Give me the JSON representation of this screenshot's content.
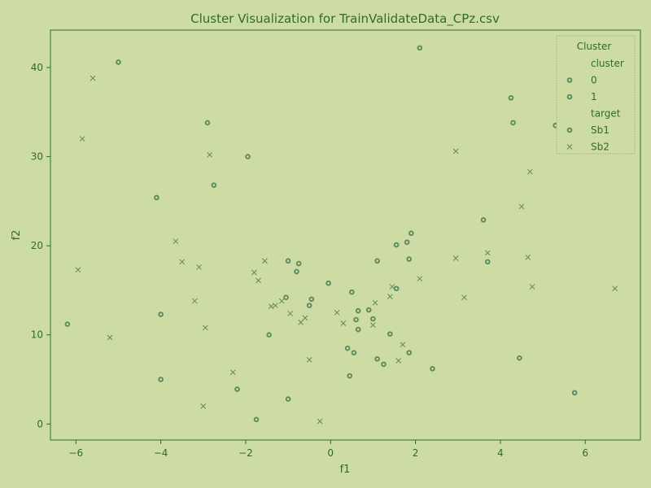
{
  "chart_data": {
    "type": "scatter",
    "title": "Cluster Visualization for TrainValidateData_CPz.csv",
    "xlabel": "f1",
    "ylabel": "f2",
    "xlim": [
      -6.6,
      7.3
    ],
    "ylim": [
      -1.8,
      44.2
    ],
    "xticks": [
      -6,
      -4,
      -2,
      0,
      2,
      4,
      6
    ],
    "yticks": [
      0,
      10,
      20,
      30,
      40
    ],
    "xtick_labels": [
      "−6",
      "−4",
      "−2",
      "0",
      "2",
      "4",
      "6"
    ],
    "ytick_labels": [
      "0",
      "10",
      "20",
      "30",
      "40"
    ],
    "grid": false,
    "legend": {
      "placement": "top-right",
      "title": "Cluster",
      "entries": [
        {
          "label": "cluster",
          "marker": "none"
        },
        {
          "label": "0",
          "marker": "dot"
        },
        {
          "label": "1",
          "marker": "dot"
        },
        {
          "label": "target",
          "marker": "none"
        },
        {
          "label": "Sb1",
          "marker": "dot"
        },
        {
          "label": "Sb2",
          "marker": "x"
        }
      ]
    },
    "marker_color": "#5f8a5f",
    "series": [
      {
        "name": "Sb1",
        "marker": "dot",
        "points": [
          [
            -6.2,
            11.2
          ],
          [
            -5.0,
            40.6
          ],
          [
            -4.1,
            25.4
          ],
          [
            -4.0,
            12.3
          ],
          [
            -4.0,
            5.0
          ],
          [
            -2.9,
            33.8
          ],
          [
            -2.75,
            26.8
          ],
          [
            -2.2,
            3.9
          ],
          [
            -1.95,
            30.0
          ],
          [
            -1.75,
            0.5
          ],
          [
            -1.45,
            10.0
          ],
          [
            -1.0,
            18.3
          ],
          [
            -0.8,
            17.1
          ],
          [
            -0.75,
            18.0
          ],
          [
            -1.05,
            14.2
          ],
          [
            -0.5,
            13.3
          ],
          [
            -0.45,
            14.0
          ],
          [
            -1.0,
            2.8
          ],
          [
            -0.05,
            15.8
          ],
          [
            0.4,
            8.5
          ],
          [
            0.45,
            5.4
          ],
          [
            0.5,
            14.8
          ],
          [
            0.55,
            8.0
          ],
          [
            0.6,
            11.7
          ],
          [
            0.65,
            12.7
          ],
          [
            0.65,
            10.6
          ],
          [
            0.9,
            12.8
          ],
          [
            1.0,
            11.8
          ],
          [
            1.1,
            7.3
          ],
          [
            1.1,
            18.3
          ],
          [
            1.25,
            6.7
          ],
          [
            1.4,
            10.1
          ],
          [
            1.55,
            20.1
          ],
          [
            1.8,
            20.4
          ],
          [
            1.85,
            18.5
          ],
          [
            1.85,
            8.0
          ],
          [
            1.9,
            21.4
          ],
          [
            2.1,
            42.2
          ],
          [
            2.4,
            6.2
          ],
          [
            3.6,
            22.9
          ],
          [
            3.7,
            18.2
          ],
          [
            4.25,
            36.6
          ],
          [
            4.3,
            33.8
          ],
          [
            4.45,
            7.4
          ],
          [
            5.3,
            33.5
          ],
          [
            5.75,
            3.5
          ],
          [
            1.55,
            15.2
          ]
        ]
      },
      {
        "name": "Sb2",
        "marker": "x",
        "points": [
          [
            -5.6,
            38.8
          ],
          [
            -5.85,
            32.0
          ],
          [
            -5.95,
            17.3
          ],
          [
            -5.2,
            9.7
          ],
          [
            -3.65,
            20.5
          ],
          [
            -3.5,
            18.2
          ],
          [
            -3.2,
            13.8
          ],
          [
            -3.1,
            17.6
          ],
          [
            -2.95,
            10.8
          ],
          [
            -3.0,
            2.0
          ],
          [
            -2.85,
            30.2
          ],
          [
            -2.3,
            5.8
          ],
          [
            -1.8,
            17.0
          ],
          [
            -1.7,
            16.1
          ],
          [
            -1.55,
            18.3
          ],
          [
            -1.4,
            13.2
          ],
          [
            -1.3,
            13.3
          ],
          [
            -1.15,
            13.8
          ],
          [
            -0.95,
            12.4
          ],
          [
            -0.7,
            11.4
          ],
          [
            -0.6,
            11.9
          ],
          [
            -0.5,
            7.2
          ],
          [
            -0.25,
            0.3
          ],
          [
            0.15,
            12.5
          ],
          [
            0.3,
            11.3
          ],
          [
            1.05,
            13.6
          ],
          [
            1.0,
            11.1
          ],
          [
            1.4,
            14.3
          ],
          [
            1.45,
            15.4
          ],
          [
            1.6,
            7.1
          ],
          [
            1.7,
            8.9
          ],
          [
            2.1,
            16.3
          ],
          [
            2.95,
            18.6
          ],
          [
            2.95,
            30.6
          ],
          [
            3.15,
            14.2
          ],
          [
            3.7,
            19.2
          ],
          [
            4.5,
            24.4
          ],
          [
            4.65,
            18.7
          ],
          [
            4.7,
            28.3
          ],
          [
            4.75,
            15.4
          ],
          [
            6.7,
            15.2
          ]
        ]
      }
    ]
  }
}
